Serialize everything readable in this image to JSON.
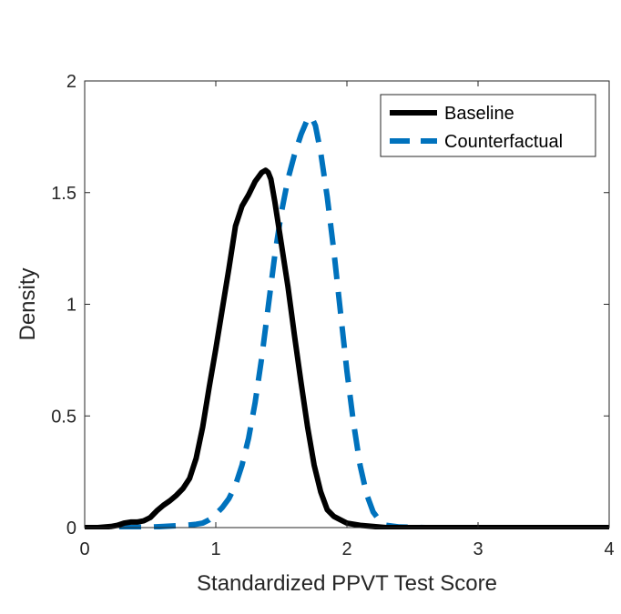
{
  "chart_data": {
    "type": "line",
    "title": "",
    "xlabel": "Standardized PPVT Test Score",
    "ylabel": "Density",
    "xlim": [
      0,
      4
    ],
    "ylim": [
      0,
      2
    ],
    "xticks": [
      0,
      1,
      2,
      3,
      4
    ],
    "xtick_labels": [
      "0",
      "1",
      "2",
      "3",
      "4"
    ],
    "yticks": [
      0,
      0.5,
      1,
      1.5,
      2
    ],
    "ytick_labels": [
      "0",
      "0.5",
      "1",
      "1.5",
      "2"
    ],
    "grid": false,
    "legend_position": "top-right",
    "series": [
      {
        "name": "Baseline",
        "color": "#000000",
        "style": "solid",
        "x": [
          0,
          0.1,
          0.2,
          0.25,
          0.3,
          0.35,
          0.4,
          0.45,
          0.5,
          0.55,
          0.6,
          0.65,
          0.7,
          0.75,
          0.8,
          0.85,
          0.9,
          0.95,
          1.0,
          1.05,
          1.1,
          1.15,
          1.2,
          1.25,
          1.3,
          1.35,
          1.38,
          1.4,
          1.42,
          1.45,
          1.5,
          1.55,
          1.6,
          1.65,
          1.7,
          1.75,
          1.8,
          1.85,
          1.9,
          1.95,
          2.0,
          2.1,
          2.2,
          2.3,
          2.5,
          3.0,
          4.0
        ],
        "y": [
          0,
          0.0,
          0.005,
          0.01,
          0.02,
          0.025,
          0.025,
          0.03,
          0.045,
          0.075,
          0.1,
          0.12,
          0.145,
          0.175,
          0.22,
          0.31,
          0.45,
          0.63,
          0.8,
          0.98,
          1.16,
          1.35,
          1.44,
          1.49,
          1.55,
          1.59,
          1.6,
          1.59,
          1.56,
          1.46,
          1.27,
          1.08,
          0.86,
          0.65,
          0.45,
          0.28,
          0.16,
          0.08,
          0.05,
          0.035,
          0.02,
          0.01,
          0.005,
          0.0,
          0.0,
          0.0,
          0.0
        ]
      },
      {
        "name": "Counterfactual",
        "color": "#0072BD",
        "style": "dashed",
        "x": [
          0,
          0.3,
          0.5,
          0.6,
          0.7,
          0.8,
          0.85,
          0.9,
          0.95,
          1.0,
          1.05,
          1.1,
          1.15,
          1.2,
          1.25,
          1.3,
          1.35,
          1.4,
          1.45,
          1.5,
          1.55,
          1.6,
          1.65,
          1.7,
          1.73,
          1.76,
          1.8,
          1.85,
          1.9,
          1.95,
          2.0,
          2.05,
          2.1,
          2.15,
          2.2,
          2.25,
          2.3,
          2.4,
          2.6,
          3.0,
          4.0
        ],
        "y": [
          0,
          0.0,
          0.002,
          0.005,
          0.008,
          0.012,
          0.015,
          0.02,
          0.035,
          0.06,
          0.09,
          0.13,
          0.19,
          0.28,
          0.4,
          0.56,
          0.76,
          0.99,
          1.22,
          1.41,
          1.56,
          1.67,
          1.76,
          1.83,
          1.84,
          1.8,
          1.68,
          1.48,
          1.24,
          0.97,
          0.7,
          0.47,
          0.28,
          0.15,
          0.07,
          0.03,
          0.01,
          0.003,
          0.0,
          0.0,
          0.0
        ]
      }
    ]
  }
}
